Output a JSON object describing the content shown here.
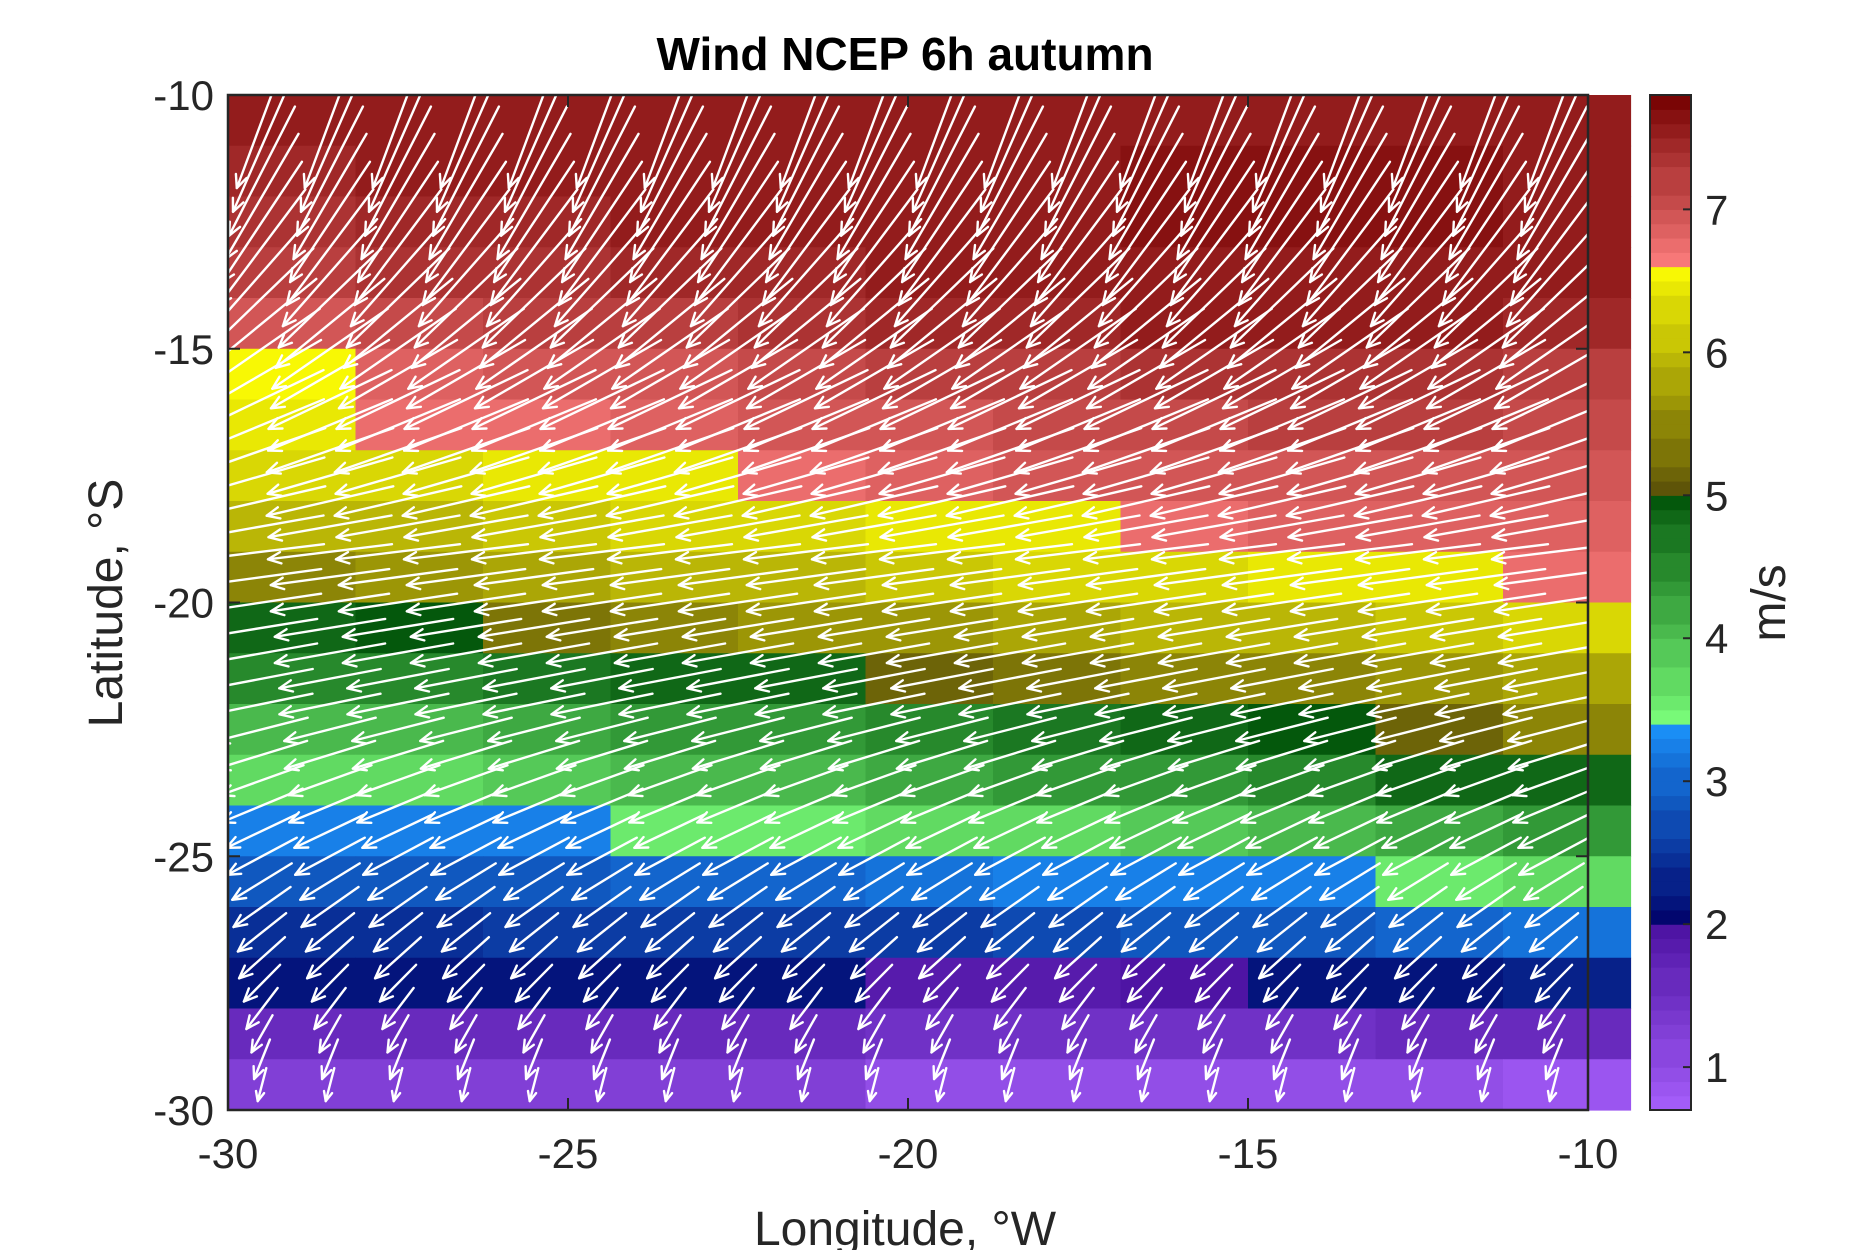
{
  "chart_data": {
    "type": "heatmap",
    "title": "Wind NCEP 6h autumn",
    "xlabel": "Longitude, °W",
    "ylabel": "Latitude, °S",
    "xlim": [
      -30,
      -10
    ],
    "ylim": [
      -30,
      -10
    ],
    "x_ticks": [
      "-30",
      "-25",
      "-20",
      "-15",
      "-10"
    ],
    "y_ticks": [
      "-10",
      "-15",
      "-20",
      "-25",
      "-30"
    ],
    "colorbar": {
      "label": "m/s",
      "range": [
        0.7,
        7.8
      ],
      "ticks": [
        "1",
        "2",
        "3",
        "4",
        "5",
        "6",
        "7"
      ],
      "tick_values": [
        1,
        2,
        3,
        4,
        5,
        6,
        7
      ],
      "colors": {
        "lt2": [
          "#a35cf8",
          "#4e14a4"
        ],
        "2to3.4": [
          "#02066e",
          "#1a8ef5"
        ],
        "3.4to5": [
          "#78fa78",
          "#04580c"
        ],
        "5to6.6": [
          "#5e5408",
          "#f8f804"
        ],
        "6.6to7.8": [
          "#f77878",
          "#7a0505"
        ]
      }
    },
    "grid": false,
    "speed_field": {
      "lon": [
        -30,
        -28.125,
        -26.25,
        -24.375,
        -22.5,
        -20.625,
        -18.75,
        -16.875,
        -15,
        -13.125,
        -11.25
      ],
      "lat": [
        -10.5,
        -11.5,
        -12.5,
        -13.5,
        -14.5,
        -15.5,
        -16.5,
        -17.5,
        -18.5,
        -19.5,
        -20.5,
        -21.5,
        -22.5,
        -23.5,
        -24.5,
        -25.5,
        -26.5,
        -27.5,
        -28.5,
        -29.5
      ],
      "speed_m_s": [
        [
          7.5,
          7.5,
          7.5,
          7.5,
          7.5,
          7.6,
          7.6,
          7.6,
          7.6,
          7.6,
          7.5
        ],
        [
          7.4,
          7.5,
          7.5,
          7.5,
          7.6,
          7.6,
          7.6,
          7.7,
          7.7,
          7.7,
          7.6
        ],
        [
          7.3,
          7.4,
          7.4,
          7.5,
          7.5,
          7.6,
          7.6,
          7.7,
          7.7,
          7.7,
          7.6
        ],
        [
          7.2,
          7.3,
          7.3,
          7.4,
          7.4,
          7.5,
          7.5,
          7.6,
          7.6,
          7.6,
          7.5
        ],
        [
          7.0,
          7.1,
          7.2,
          7.2,
          7.3,
          7.4,
          7.4,
          7.5,
          7.5,
          7.5,
          7.4
        ],
        [
          6.6,
          6.8,
          6.9,
          7.0,
          7.1,
          7.2,
          7.2,
          7.3,
          7.3,
          7.3,
          7.2
        ],
        [
          6.5,
          6.7,
          6.7,
          6.8,
          6.9,
          7.0,
          7.1,
          7.1,
          7.2,
          7.2,
          7.1
        ],
        [
          6.3,
          6.3,
          6.4,
          6.5,
          6.7,
          6.8,
          6.9,
          7.0,
          7.0,
          7.0,
          6.9
        ],
        [
          5.9,
          6.0,
          6.1,
          6.2,
          6.3,
          6.4,
          6.5,
          6.7,
          6.8,
          6.8,
          6.8
        ],
        [
          5.5,
          5.6,
          5.8,
          5.9,
          6.0,
          6.1,
          6.2,
          6.3,
          6.4,
          6.5,
          6.7
        ],
        [
          4.9,
          5.0,
          5.3,
          5.5,
          5.6,
          5.7,
          5.8,
          5.9,
          6.0,
          6.1,
          6.2
        ],
        [
          4.6,
          4.6,
          4.7,
          4.8,
          4.9,
          5.2,
          5.3,
          5.4,
          5.5,
          5.6,
          5.8
        ],
        [
          4.0,
          4.1,
          4.2,
          4.3,
          4.4,
          4.6,
          4.7,
          4.8,
          5.0,
          5.2,
          5.4
        ],
        [
          3.7,
          3.8,
          3.9,
          4.0,
          4.1,
          4.2,
          4.3,
          4.4,
          4.6,
          4.8,
          4.9
        ],
        [
          3.2,
          3.2,
          3.3,
          3.5,
          3.6,
          3.7,
          3.8,
          3.9,
          4.0,
          4.2,
          4.3
        ],
        [
          2.8,
          2.8,
          2.9,
          3.0,
          3.0,
          3.1,
          3.2,
          3.3,
          3.3,
          3.6,
          3.7
        ],
        [
          2.4,
          2.4,
          2.5,
          2.5,
          2.6,
          2.6,
          2.7,
          2.8,
          2.9,
          3.0,
          3.1
        ],
        [
          2.1,
          2.1,
          2.1,
          2.1,
          2.2,
          1.9,
          1.9,
          2.0,
          2.1,
          2.2,
          2.3
        ],
        [
          1.6,
          1.6,
          1.6,
          1.6,
          1.6,
          1.5,
          1.5,
          1.5,
          1.5,
          1.6,
          1.6
        ],
        [
          1.2,
          1.2,
          1.2,
          1.2,
          1.2,
          1.0,
          1.0,
          1.0,
          1.0,
          0.9,
          0.8
        ]
      ]
    },
    "wind_vectors": {
      "color": "#ffffff",
      "direction_by_latitude": [
        {
          "lat": -10.5,
          "u": -0.35,
          "v": -0.94
        },
        {
          "lat": -13,
          "u": -0.6,
          "v": -0.8
        },
        {
          "lat": -16,
          "u": -0.9,
          "v": -0.43
        },
        {
          "lat": -19,
          "u": -0.99,
          "v": -0.12
        },
        {
          "lat": -22,
          "u": -0.98,
          "v": -0.2
        },
        {
          "lat": -25,
          "u": -0.88,
          "v": -0.47
        },
        {
          "lat": -27.5,
          "u": -0.7,
          "v": -0.71
        },
        {
          "lat": -29.5,
          "u": -0.25,
          "v": -0.97
        }
      ]
    }
  }
}
